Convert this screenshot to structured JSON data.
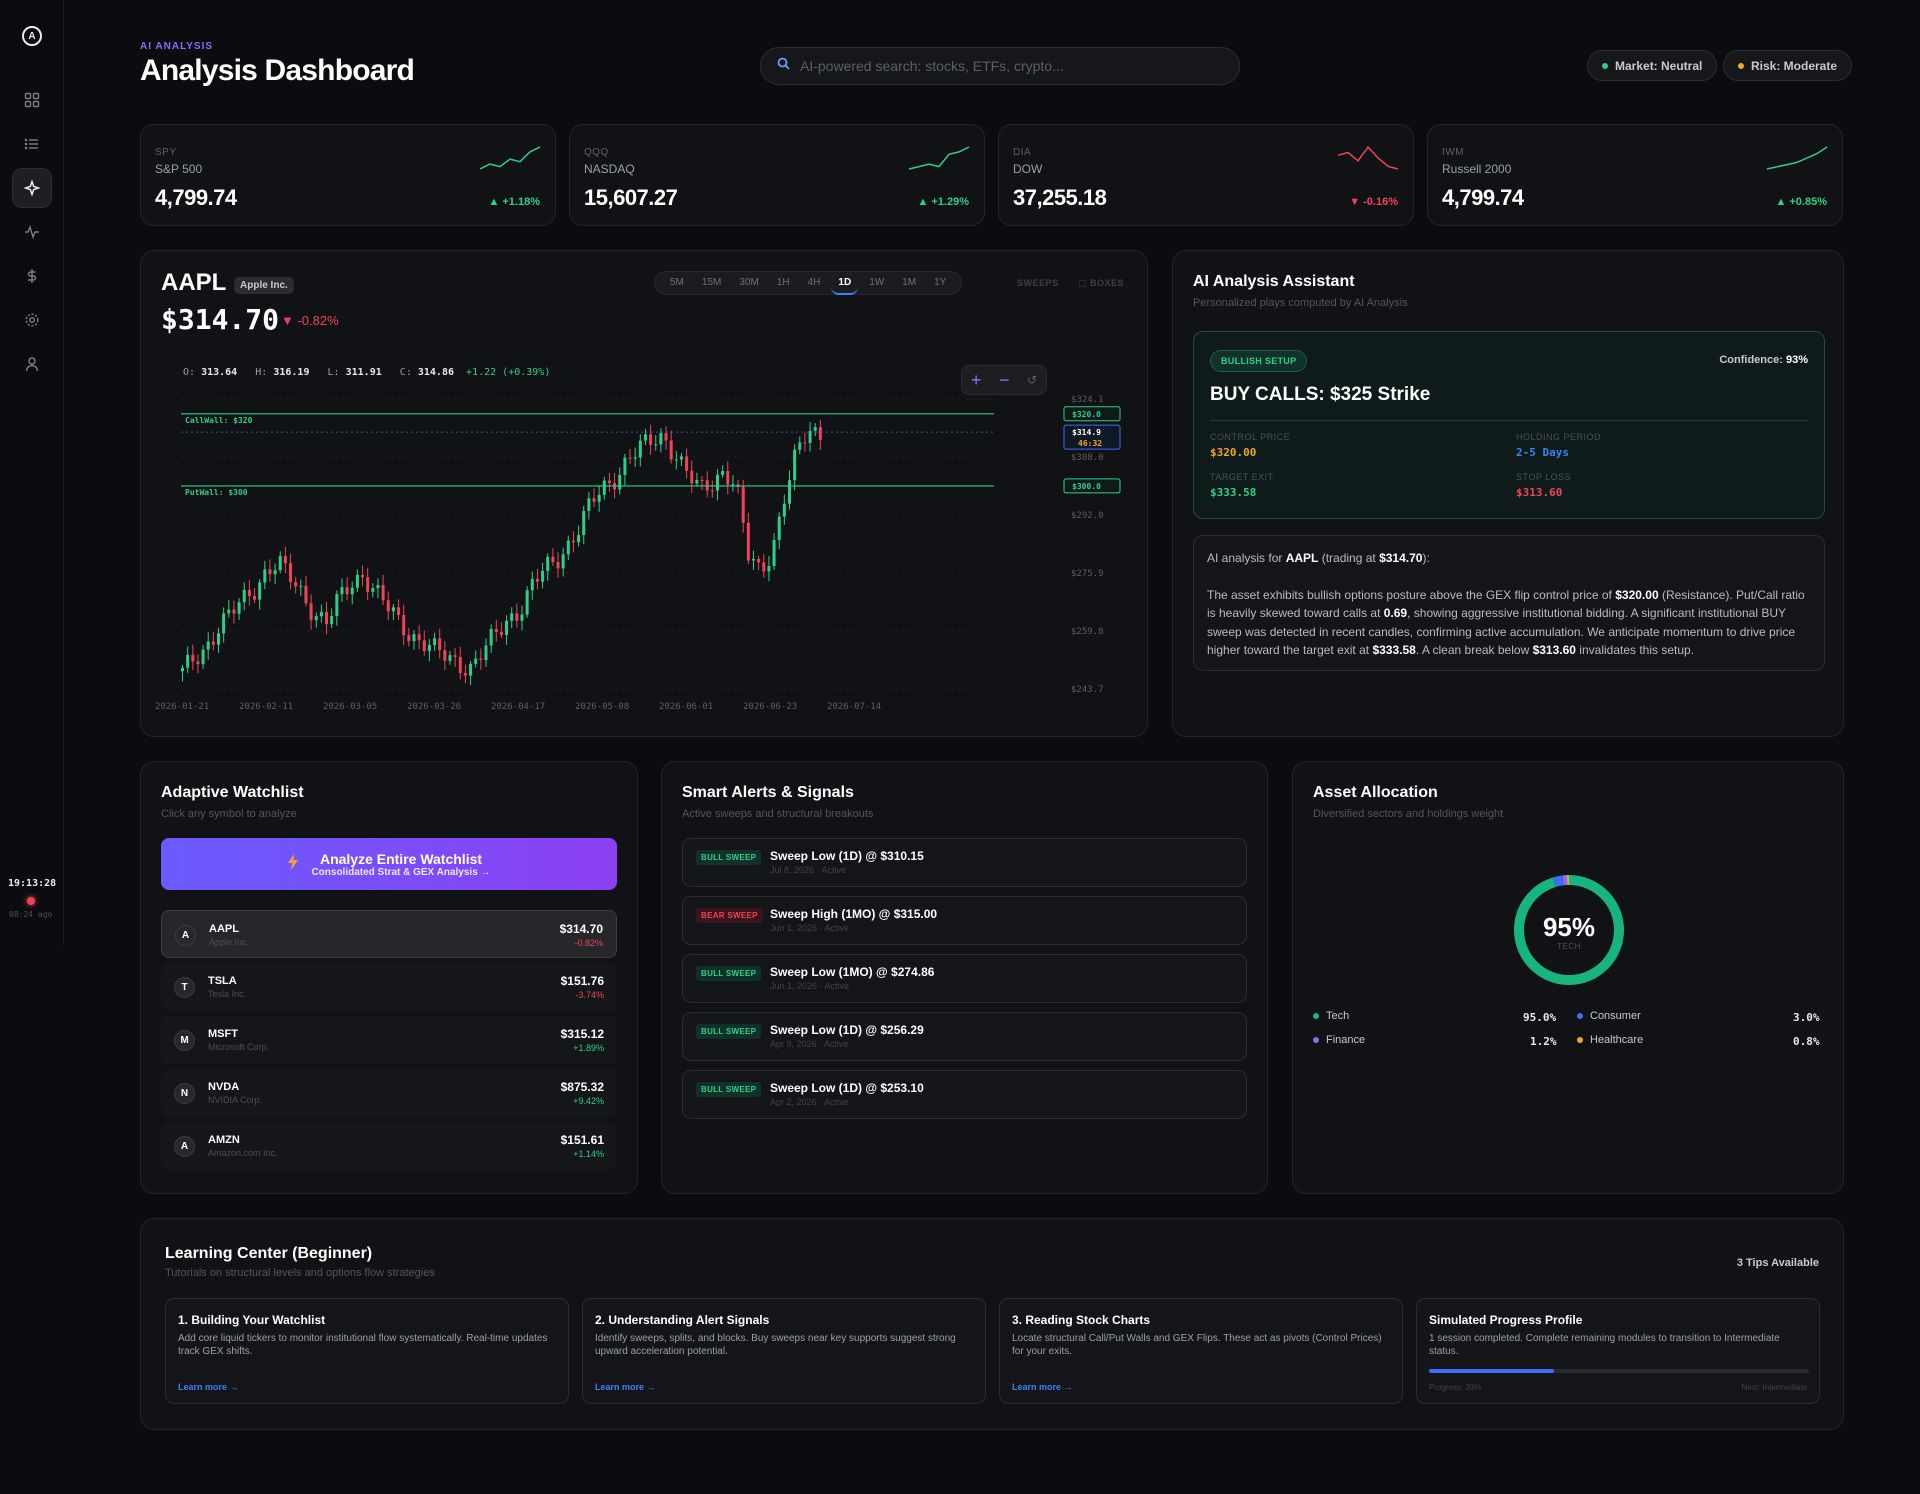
{
  "sidebar": {
    "logo": "A",
    "clock": "19:13:28",
    "clock_ago": "08:24 ago"
  },
  "header": {
    "eyebrow": "AI ANALYSIS",
    "title": "Analysis Dashboard",
    "search_placeholder": "AI-powered search: stocks, ETFs, crypto...",
    "market_pill": "Market: Neutral",
    "risk_pill": "Risk: Moderate",
    "colors": {
      "accent": "#8b6cff",
      "market_dot": "#2ed088",
      "risk_dot": "#f5a524"
    }
  },
  "tickers": [
    {
      "symbol": "SPY",
      "name": "S&P 500",
      "price": "4,799.74",
      "change": "▲ +1.18%",
      "direction": "up",
      "spark": [
        5,
        7,
        6,
        9,
        8,
        12,
        14
      ]
    },
    {
      "symbol": "QQQ",
      "name": "NASDAQ",
      "price": "15,607.27",
      "change": "▲ +1.29%",
      "direction": "up",
      "spark": [
        5,
        6,
        7,
        6,
        11,
        12,
        14
      ]
    },
    {
      "symbol": "DIA",
      "name": "DOW",
      "price": "37,255.18",
      "change": "▼ -0.16%",
      "direction": "down",
      "spark": [
        11,
        12,
        9,
        14,
        10,
        7,
        6
      ]
    },
    {
      "symbol": "IWM",
      "name": "Russell 2000",
      "price": "4,799.74",
      "change": "▲ +0.85%",
      "direction": "up",
      "spark": [
        4,
        5,
        6,
        7,
        9,
        11,
        14
      ]
    }
  ],
  "chart": {
    "symbol": "AAPL",
    "company": "Apple Inc.",
    "price": "$314.70",
    "change": "▼ -0.82%",
    "timeframes": [
      "5M",
      "15M",
      "30M",
      "1H",
      "4H",
      "1D",
      "1W",
      "1M",
      "1Y"
    ],
    "active_timeframe": "1D",
    "extra_sweeps": "SWEEPS",
    "extra_boxes": "▢ BOXES",
    "ohlc": {
      "o_label": "O:",
      "o": "313.64",
      "h_label": "H:",
      "h": "316.19",
      "l_label": "L:",
      "l": "311.91",
      "c_label": "C:",
      "c": "314.86",
      "chg": "+1.22 (+0.39%)"
    },
    "zoom_in": "+",
    "zoom_out": "−",
    "zoom_reset": "↺"
  },
  "chart_data": {
    "type": "candlestick",
    "title": "AAPL",
    "x_ticks": [
      "2026-01-21",
      "2026-02-11",
      "2026-03-05",
      "2026-03-26",
      "2026-04-17",
      "2026-05-08",
      "2026-06-01",
      "2026-06-23",
      "2026-07-14"
    ],
    "y_ticks": [
      "$324.1",
      "$308.0",
      "$292.0",
      "$275.9",
      "$259.8",
      "$243.7"
    ],
    "ylim": [
      243.7,
      324.1
    ],
    "levels": [
      {
        "label": "CallWall: $320",
        "value": 320.0,
        "tag": "$320.0"
      },
      {
        "label": "PutWall: $300",
        "value": 300.0,
        "tag": "$300.0"
      }
    ],
    "last_price_tag": "$314.9",
    "countdown_tag": "46:32",
    "last_price": 314.9,
    "closes": [
      248,
      252,
      256,
      261,
      264,
      268,
      272,
      277,
      278,
      274,
      270,
      265,
      262,
      268,
      273,
      276,
      271,
      266,
      262,
      259,
      257,
      254,
      252,
      251,
      250,
      254,
      258,
      263,
      266,
      272,
      276,
      279,
      284,
      289,
      295,
      299,
      303,
      308,
      310,
      312,
      314,
      309,
      303,
      298,
      301,
      305,
      300,
      280,
      276,
      283,
      297,
      308,
      315,
      314.9
    ],
    "candle_count": 54,
    "grid": true
  },
  "ai": {
    "title": "AI Analysis Assistant",
    "subtitle": "Personalized plays computed by AI Analysis",
    "setup_badge": "BULLISH SETUP",
    "confidence_label": "Confidence:",
    "confidence_value": "93%",
    "headline": "BUY CALLS: $325 Strike",
    "control_price_label": "CONTROL PRICE",
    "control_price": "$320.00",
    "holding_label": "HOLDING PERIOD",
    "holding": "2-5 Days",
    "target_label": "TARGET EXIT",
    "target": "$333.58",
    "stop_label": "STOP LOSS",
    "stop": "$313.60",
    "analysis_intro_1": "AI analysis for ",
    "analysis_symbol": "AAPL",
    "analysis_intro_2": " (trading at ",
    "analysis_price": "$314.70",
    "analysis_intro_3": "):",
    "p1": "The asset exhibits bullish options posture above the GEX flip control price of ",
    "p1b": "$320.00",
    "p2": " (Resistance). Put/Call ratio is heavily skewed toward calls at ",
    "p2b": "0.69",
    "p3": ", showing aggressive institutional bidding. A significant institutional BUY sweep was detected in recent candles, confirming active accumulation. We anticipate momentum to drive price higher toward the target exit at ",
    "p3b": "$333.58",
    "p4": ". A clean break below ",
    "p4b": "$313.60",
    "p5": " invalidates this setup."
  },
  "watchlist": {
    "title": "Adaptive Watchlist",
    "subtitle": "Click any symbol to analyze",
    "button_title": "Analyze Entire Watchlist",
    "button_sub": "Consolidated Strat & GEX Analysis →",
    "items": [
      {
        "initial": "A",
        "symbol": "AAPL",
        "name": "Apple Inc.",
        "price": "$314.70",
        "change": "-0.82%",
        "direction": "down"
      },
      {
        "initial": "T",
        "symbol": "TSLA",
        "name": "Tesla Inc.",
        "price": "$151.76",
        "change": "-3.74%",
        "direction": "down"
      },
      {
        "initial": "M",
        "symbol": "MSFT",
        "name": "Microsoft Corp.",
        "price": "$315.12",
        "change": "+1.89%",
        "direction": "up"
      },
      {
        "initial": "N",
        "symbol": "NVDA",
        "name": "NVIDIA Corp.",
        "price": "$875.32",
        "change": "+9.42%",
        "direction": "up"
      },
      {
        "initial": "A",
        "symbol": "AMZN",
        "name": "Amazon.com Inc.",
        "price": "$151.61",
        "change": "+1.14%",
        "direction": "up"
      }
    ]
  },
  "alerts": {
    "title": "Smart Alerts & Signals",
    "subtitle": "Active sweeps and structural breakouts",
    "items": [
      {
        "tag": "BULL SWEEP",
        "kind": "bull",
        "title": "Sweep Low (1D) @ $310.15",
        "meta": "Jul 8, 2026 · Active"
      },
      {
        "tag": "BEAR SWEEP",
        "kind": "bear",
        "title": "Sweep High (1MO) @ $315.00",
        "meta": "Jun 1, 2026 · Active"
      },
      {
        "tag": "BULL SWEEP",
        "kind": "bull",
        "title": "Sweep Low (1MO) @ $274.86",
        "meta": "Jun 1, 2026 · Active"
      },
      {
        "tag": "BULL SWEEP",
        "kind": "bull",
        "title": "Sweep Low (1D) @ $256.29",
        "meta": "Apr 9, 2026 · Active"
      },
      {
        "tag": "BULL SWEEP",
        "kind": "bull",
        "title": "Sweep Low (1D) @ $253.10",
        "meta": "Apr 2, 2026 · Active"
      }
    ]
  },
  "allocation": {
    "title": "Asset Allocation",
    "subtitle": "Diversified sectors and holdings weight",
    "center_value": "95%",
    "center_label": "TECH",
    "segments": [
      {
        "name": "Tech",
        "value": "95.0%",
        "pct": 95.0,
        "color": "#17b57e"
      },
      {
        "name": "Consumer",
        "value": "3.0%",
        "pct": 3.0,
        "color": "#3b6ef6"
      },
      {
        "name": "Finance",
        "value": "1.2%",
        "pct": 1.2,
        "color": "#8b6cff"
      },
      {
        "name": "Healthcare",
        "value": "0.8%",
        "pct": 0.8,
        "color": "#f5a524"
      }
    ]
  },
  "learning": {
    "title": "Learning Center (Beginner)",
    "subtitle": "Tutorials on structural levels and options flow strategies",
    "tips_count": "3 Tips Available",
    "tips": [
      {
        "title": "1. Building Your Watchlist",
        "desc": "Add core liquid tickers to monitor institutional flow systematically. Real-time updates track GEX shifts.",
        "link": "Learn more →"
      },
      {
        "title": "2. Understanding Alert Signals",
        "desc": "Identify sweeps, splits, and blocks. Buy sweeps near key supports suggest strong upward acceleration potential.",
        "link": "Learn more →"
      },
      {
        "title": "3. Reading Stock Charts",
        "desc": "Locate structural Call/Put Walls and GEX Flips. These act as pivots (Control Prices) for your exits.",
        "link": "Learn more →"
      }
    ],
    "progress_title": "Simulated Progress Profile",
    "progress_desc": "1 session completed. Complete remaining modules to transition to Intermediate status.",
    "progress_value": 0.33,
    "progress_label": "Progress: 33%",
    "progress_next": "Next: Intermediate"
  }
}
